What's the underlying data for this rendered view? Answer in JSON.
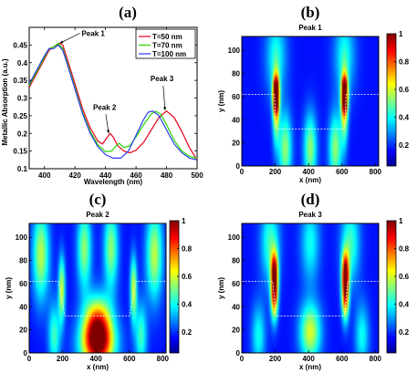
{
  "panels": [
    "(a)",
    "(b)",
    "(c)",
    "(d)"
  ],
  "colors": {
    "T50": "#e8001c",
    "T70": "#26d400",
    "T100": "#2a3df0"
  },
  "chart_data": [
    {
      "type": "line",
      "panel": "(a)",
      "xlabel": "Wavelength (nm)",
      "ylabel": "Metallic Absorption (a.u.)",
      "xlim": [
        390,
        500
      ],
      "ylim": [
        0.1,
        0.5
      ],
      "xticks": [
        "400",
        "420",
        "440",
        "460",
        "480",
        "500"
      ],
      "yticks": [
        "0.1",
        "0.15",
        "0.2",
        "0.25",
        "0.3",
        "0.35",
        "0.4",
        "0.45"
      ],
      "legend_position": "top-right",
      "series": [
        {
          "name": "T=50 nm",
          "x": [
            390,
            395,
            400,
            403,
            406,
            410,
            412,
            415,
            420,
            425,
            430,
            435,
            438,
            441,
            443,
            445,
            448,
            452,
            456,
            460,
            465,
            470,
            475,
            480,
            485,
            490,
            495,
            500
          ],
          "y": [
            0.33,
            0.37,
            0.41,
            0.435,
            0.445,
            0.455,
            0.45,
            0.41,
            0.34,
            0.27,
            0.215,
            0.178,
            0.17,
            0.188,
            0.2,
            0.19,
            0.165,
            0.15,
            0.145,
            0.152,
            0.175,
            0.21,
            0.245,
            0.263,
            0.245,
            0.205,
            0.16,
            0.125
          ]
        },
        {
          "name": "T=70 nm",
          "x": [
            390,
            395,
            400,
            403,
            406,
            409,
            412,
            415,
            420,
            425,
            430,
            435,
            440,
            444,
            447,
            449,
            452,
            456,
            460,
            465,
            470,
            473,
            476,
            480,
            485,
            490,
            495,
            500
          ],
          "y": [
            0.335,
            0.375,
            0.415,
            0.44,
            0.445,
            0.455,
            0.44,
            0.4,
            0.33,
            0.26,
            0.205,
            0.168,
            0.148,
            0.15,
            0.165,
            0.172,
            0.16,
            0.165,
            0.19,
            0.225,
            0.255,
            0.262,
            0.255,
            0.225,
            0.18,
            0.15,
            0.135,
            0.13
          ]
        },
        {
          "name": "T=100 nm",
          "x": [
            390,
            395,
            400,
            403,
            406,
            409,
            412,
            415,
            420,
            425,
            430,
            435,
            440,
            445,
            450,
            455,
            460,
            465,
            468,
            471,
            475,
            480,
            485,
            490,
            495,
            500
          ],
          "y": [
            0.34,
            0.38,
            0.42,
            0.44,
            0.44,
            0.45,
            0.435,
            0.395,
            0.325,
            0.255,
            0.2,
            0.162,
            0.14,
            0.13,
            0.13,
            0.15,
            0.195,
            0.24,
            0.26,
            0.263,
            0.25,
            0.21,
            0.17,
            0.145,
            0.13,
            0.125
          ]
        }
      ],
      "annotations": [
        {
          "text": "Peak 1",
          "x": 410,
          "y": 0.455
        },
        {
          "text": "Peak 2",
          "x": 442,
          "y": 0.2
        },
        {
          "text": "Peak 3",
          "x": 479,
          "y": 0.265
        }
      ]
    },
    {
      "type": "heatmap",
      "panel": "(b)",
      "title": "Peak 1",
      "xlabel": "x (nm)",
      "ylabel": "y (nm)",
      "xlim": [
        0,
        820
      ],
      "ylim": [
        0,
        112
      ],
      "xticks": [
        "0",
        "200",
        "400",
        "600",
        "800"
      ],
      "yticks": [
        "0",
        "20",
        "40",
        "60",
        "80",
        "100"
      ],
      "colorbar": [
        "0.2",
        "0.4",
        "0.6",
        "0.8",
        "1"
      ],
      "colorbar_range": [
        0.05,
        1
      ],
      "boundary": [
        [
          0,
          62
        ],
        [
          195,
          62
        ],
        [
          205,
          32
        ],
        [
          615,
          32
        ],
        [
          625,
          62
        ],
        [
          820,
          62
        ]
      ],
      "blobs": [
        {
          "x": 205,
          "y": 62,
          "sx": 12,
          "sy": 10,
          "v": 0.95
        },
        {
          "x": 615,
          "y": 62,
          "sx": 12,
          "sy": 10,
          "v": 0.95
        },
        {
          "x": 205,
          "y": 50,
          "sx": 15,
          "sy": 22,
          "v": 0.45
        },
        {
          "x": 615,
          "y": 50,
          "sx": 15,
          "sy": 22,
          "v": 0.45
        },
        {
          "x": 260,
          "y": 15,
          "sx": 28,
          "sy": 22,
          "v": 0.38
        },
        {
          "x": 410,
          "y": 15,
          "sx": 28,
          "sy": 22,
          "v": 0.38
        },
        {
          "x": 560,
          "y": 15,
          "sx": 28,
          "sy": 22,
          "v": 0.38
        },
        {
          "x": 205,
          "y": 95,
          "sx": 45,
          "sy": 25,
          "v": 0.25
        },
        {
          "x": 615,
          "y": 95,
          "sx": 45,
          "sy": 25,
          "v": 0.25
        }
      ]
    },
    {
      "type": "heatmap",
      "panel": "(c)",
      "title": "Peak 2",
      "xlabel": "x (nm)",
      "ylabel": "y (nm)",
      "xlim": [
        0,
        820
      ],
      "ylim": [
        0,
        112
      ],
      "xticks": [
        "0",
        "200",
        "400",
        "600",
        "800"
      ],
      "yticks": [
        "0",
        "20",
        "40",
        "60",
        "80",
        "100"
      ],
      "colorbar": [
        "0.2",
        "0.4",
        "0.6",
        "0.8",
        "1"
      ],
      "colorbar_range": [
        0.05,
        1
      ],
      "boundary": [
        [
          0,
          62
        ],
        [
          175,
          62
        ],
        [
          215,
          32
        ],
        [
          600,
          32
        ],
        [
          640,
          62
        ],
        [
          820,
          62
        ]
      ],
      "blobs": [
        {
          "x": 410,
          "y": 22,
          "sx": 60,
          "sy": 18,
          "v": 0.72
        },
        {
          "x": 410,
          "y": 5,
          "sx": 75,
          "sy": 15,
          "v": 0.5
        },
        {
          "x": 195,
          "y": 55,
          "sx": 14,
          "sy": 20,
          "v": 0.45
        },
        {
          "x": 625,
          "y": 55,
          "sx": 14,
          "sy": 20,
          "v": 0.45
        },
        {
          "x": 70,
          "y": 85,
          "sx": 35,
          "sy": 28,
          "v": 0.42
        },
        {
          "x": 750,
          "y": 85,
          "sx": 35,
          "sy": 28,
          "v": 0.42
        },
        {
          "x": 330,
          "y": 90,
          "sx": 30,
          "sy": 25,
          "v": 0.38
        },
        {
          "x": 490,
          "y": 90,
          "sx": 30,
          "sy": 25,
          "v": 0.38
        },
        {
          "x": 150,
          "y": 15,
          "sx": 25,
          "sy": 20,
          "v": 0.3
        },
        {
          "x": 670,
          "y": 15,
          "sx": 25,
          "sy": 20,
          "v": 0.3
        }
      ]
    },
    {
      "type": "heatmap",
      "panel": "(d)",
      "title": "Peak 3",
      "xlabel": "x (nm)",
      "ylabel": "y (nm)",
      "xlim": [
        0,
        820
      ],
      "ylim": [
        0,
        112
      ],
      "xticks": [
        "0",
        "200",
        "400",
        "600",
        "800"
      ],
      "yticks": [
        "0",
        "20",
        "40",
        "60",
        "80",
        "100"
      ],
      "colorbar": [
        "0.2",
        "0.4",
        "0.6",
        "0.8",
        "1"
      ],
      "colorbar_range": [
        0.05,
        1
      ],
      "boundary": [
        [
          0,
          62
        ],
        [
          185,
          62
        ],
        [
          205,
          32
        ],
        [
          615,
          32
        ],
        [
          635,
          62
        ],
        [
          820,
          62
        ]
      ],
      "blobs": [
        {
          "x": 195,
          "y": 52,
          "sx": 15,
          "sy": 16,
          "v": 0.75
        },
        {
          "x": 620,
          "y": 52,
          "sx": 15,
          "sy": 16,
          "v": 0.75
        },
        {
          "x": 195,
          "y": 72,
          "sx": 15,
          "sy": 12,
          "v": 0.5
        },
        {
          "x": 620,
          "y": 72,
          "sx": 15,
          "sy": 12,
          "v": 0.5
        },
        {
          "x": 410,
          "y": 18,
          "sx": 45,
          "sy": 18,
          "v": 0.45
        },
        {
          "x": 170,
          "y": 95,
          "sx": 40,
          "sy": 25,
          "v": 0.3
        },
        {
          "x": 650,
          "y": 95,
          "sx": 40,
          "sy": 25,
          "v": 0.3
        },
        {
          "x": 410,
          "y": 95,
          "sx": 40,
          "sy": 25,
          "v": 0.25
        },
        {
          "x": 100,
          "y": 15,
          "sx": 30,
          "sy": 20,
          "v": 0.25
        },
        {
          "x": 720,
          "y": 15,
          "sx": 30,
          "sy": 20,
          "v": 0.25
        }
      ]
    }
  ]
}
